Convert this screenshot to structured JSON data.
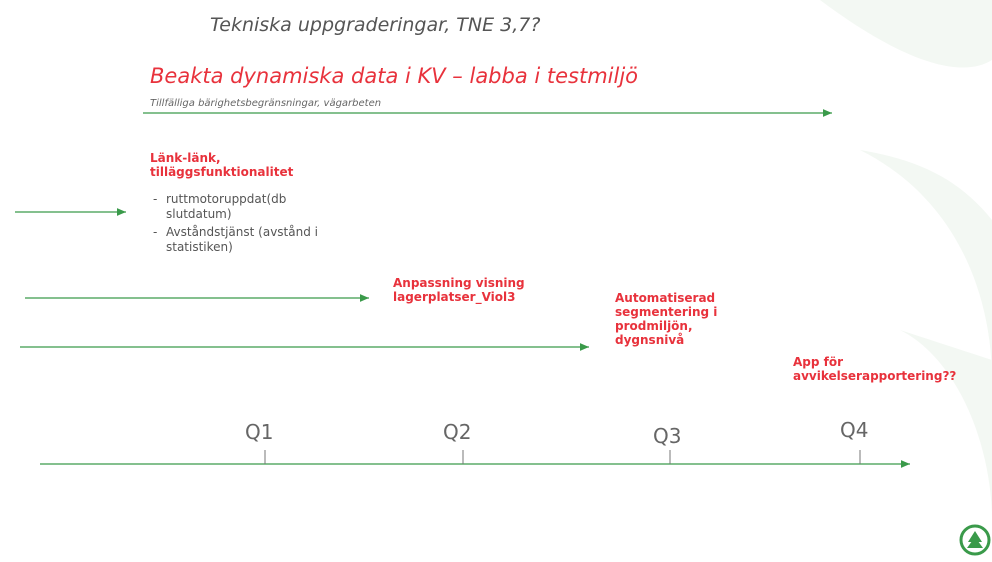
{
  "title": "Tekniska uppgraderingar, TNE 3,7?",
  "heading": {
    "text": "Beakta dynamiska data i KV – labba i testmiljö",
    "subtext": "Tillfälliga bärighetsbegränsningar, vägarbeten"
  },
  "items": [
    {
      "label": "Länk-länk, tilläggsfunktionalitet",
      "bullets": [
        "ruttmotoruppdat(db slutdatum)",
        "Avståndstjänst (avstånd i statistiken)"
      ]
    },
    {
      "label": "Anpassning visning lagerplatser_Viol3"
    },
    {
      "label": "Automatiserad segmentering i prodmiljön, dygnsnivå"
    },
    {
      "label": "App för avvikelserapportering??"
    }
  ],
  "quarters": [
    "Q1",
    "Q2",
    "Q3",
    "Q4"
  ]
}
